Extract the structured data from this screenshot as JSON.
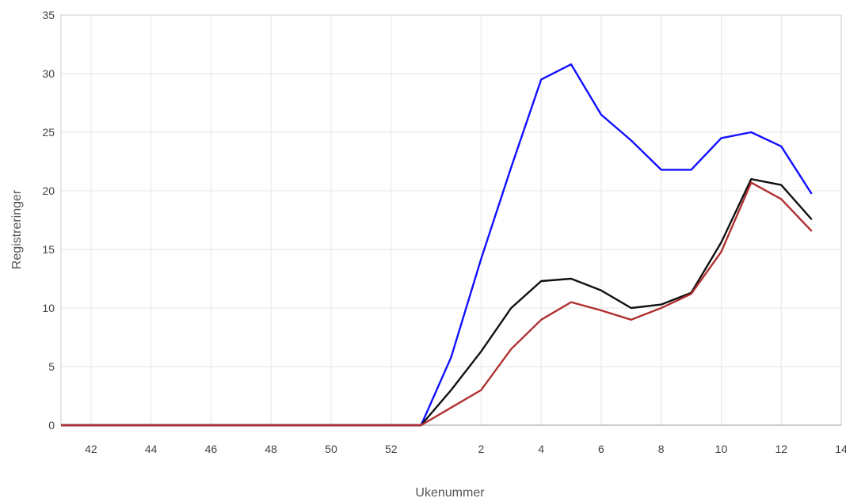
{
  "chart_data": {
    "type": "line",
    "xlabel": "Ukenummer",
    "ylabel": "Registreringer",
    "ylim": [
      0,
      35
    ],
    "y_ticks": [
      0,
      5,
      10,
      15,
      20,
      25,
      30,
      35
    ],
    "x": [
      41,
      42,
      43,
      44,
      45,
      46,
      47,
      48,
      49,
      50,
      51,
      52,
      53,
      1,
      2,
      3,
      4,
      5,
      6,
      7,
      8,
      9,
      10,
      11,
      12,
      13,
      14
    ],
    "x_tick_labels": [
      "42",
      "44",
      "46",
      "48",
      "50",
      "52",
      "2",
      "4",
      "6",
      "8",
      "10",
      "12",
      "14"
    ],
    "grid": true,
    "series": [
      {
        "color": "#1010ff",
        "values": [
          0,
          0,
          0,
          0,
          0,
          0,
          0,
          0,
          0,
          0,
          0,
          0,
          0,
          5.8,
          14.2,
          22.0,
          29.5,
          30.8,
          26.5,
          24.3,
          21.8,
          21.8,
          24.5,
          25.0,
          23.8,
          19.8,
          null
        ]
      },
      {
        "color": "#111111",
        "values": [
          0,
          0,
          0,
          0,
          0,
          0,
          0,
          0,
          0,
          0,
          0,
          0,
          0,
          3.0,
          6.3,
          10.0,
          12.3,
          12.5,
          11.5,
          10.0,
          10.3,
          11.3,
          15.6,
          21.0,
          20.5,
          17.6,
          null
        ]
      },
      {
        "color": "#b03030",
        "values": [
          0,
          0,
          0,
          0,
          0,
          0,
          0,
          0,
          0,
          0,
          0,
          0,
          0,
          1.5,
          3.0,
          6.5,
          9.0,
          10.5,
          9.8,
          9.0,
          10.0,
          11.2,
          14.8,
          20.7,
          19.3,
          16.6,
          null
        ]
      }
    ]
  }
}
